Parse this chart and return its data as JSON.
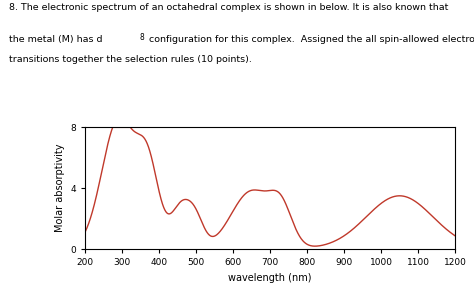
{
  "xlabel": "wavelength (nm)",
  "ylabel": "Molar absorptivity",
  "xlim": [
    200,
    1200
  ],
  "ylim": [
    0,
    8
  ],
  "yticks": [
    0,
    4,
    8
  ],
  "xticks": [
    200,
    300,
    400,
    500,
    600,
    700,
    800,
    900,
    1000,
    1100,
    1200
  ],
  "line_color": "#c0392b",
  "figsize": [
    4.74,
    2.83
  ],
  "dpi": 100,
  "text_line1": "8. The electronic spectrum of an octahedral complex is shown in below. It is also known that",
  "text_line2": "the metal (M) has d",
  "text_superscript": "8",
  "text_line2_rest": " configuration for this complex.  Assigned the all spin-allowed electronic",
  "text_line3": "transitions together the selection rules (10 points).",
  "gaussians": [
    {
      "mu": 290,
      "sigma": 45,
      "amp": 8.5
    },
    {
      "mu": 370,
      "sigma": 30,
      "amp": 5.0
    },
    {
      "mu": 460,
      "sigma": 28,
      "amp": 2.8
    },
    {
      "mu": 500,
      "sigma": 22,
      "amp": 1.5
    },
    {
      "mu": 650,
      "sigma": 55,
      "amp": 3.8
    },
    {
      "mu": 730,
      "sigma": 30,
      "amp": 2.2
    },
    {
      "mu": 1050,
      "sigma": 90,
      "amp": 3.5
    }
  ]
}
